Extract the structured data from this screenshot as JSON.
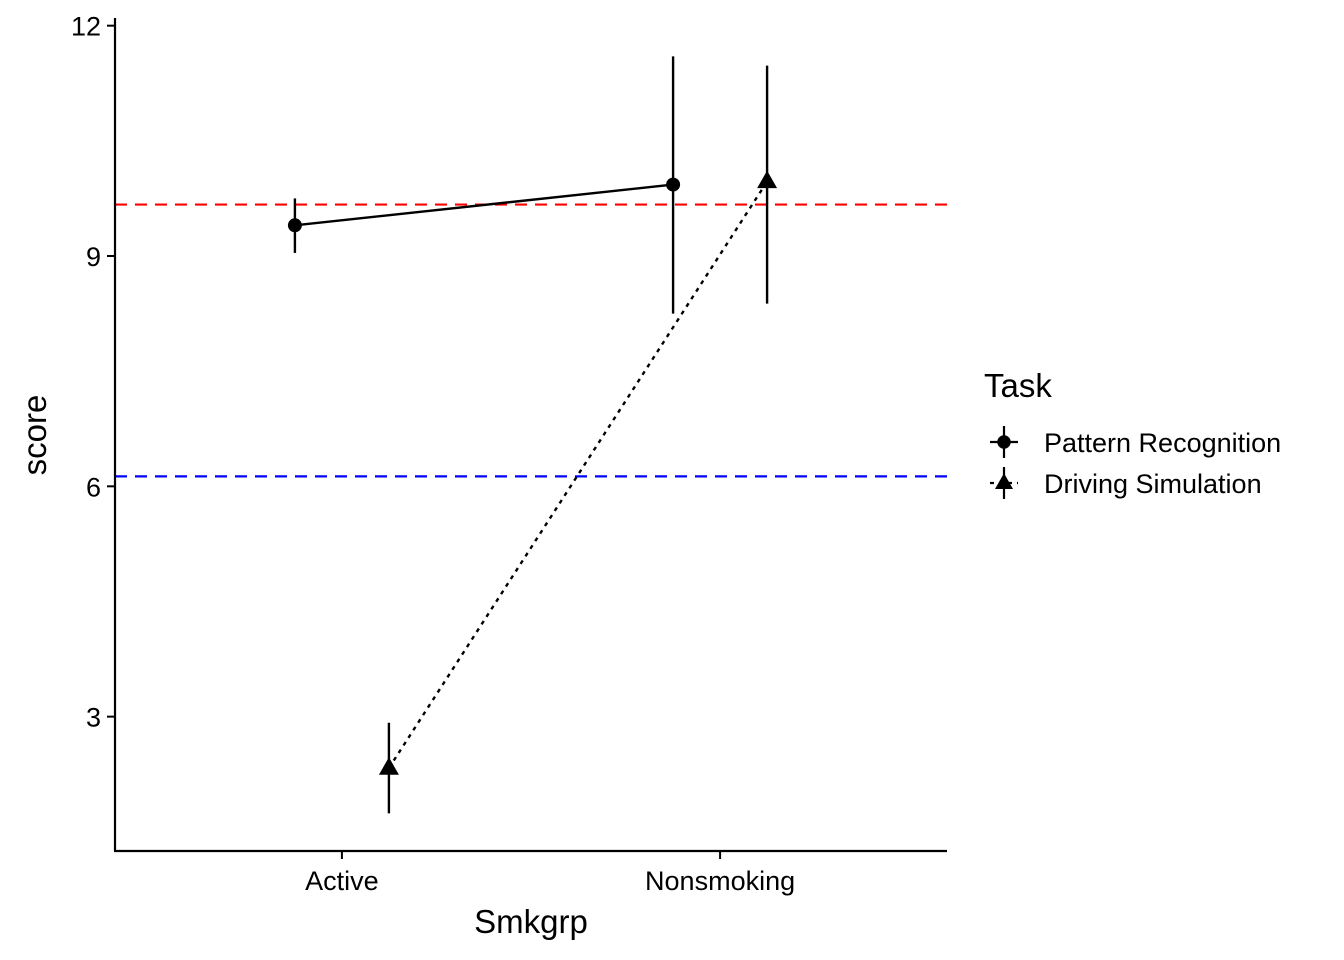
{
  "chart_data": {
    "type": "line",
    "xlabel": "Smkgrp",
    "ylabel": "score",
    "categories": [
      "Active",
      "Nonsmoking"
    ],
    "ylim": [
      1.25,
      12.1
    ],
    "yticks": [
      3,
      6,
      9,
      12
    ],
    "grid": false,
    "legend": {
      "title": "Task",
      "placement": "right"
    },
    "series": [
      {
        "name": "Pattern Recognition",
        "marker": "circle",
        "linestyle": "solid",
        "values": [
          9.4,
          9.93
        ],
        "error_low": [
          9.04,
          8.25
        ],
        "error_high": [
          9.75,
          11.6
        ]
      },
      {
        "name": "Driving Simulation",
        "marker": "triangle",
        "linestyle": "dotted",
        "values": [
          2.33,
          9.97
        ],
        "error_low": [
          1.74,
          8.38
        ],
        "error_high": [
          2.92,
          11.48
        ]
      }
    ],
    "reference_lines": [
      {
        "y": 9.67,
        "color": "#ff0000",
        "linestyle": "dashed"
      },
      {
        "y": 6.13,
        "color": "#0000ff",
        "linestyle": "dashed"
      }
    ]
  }
}
